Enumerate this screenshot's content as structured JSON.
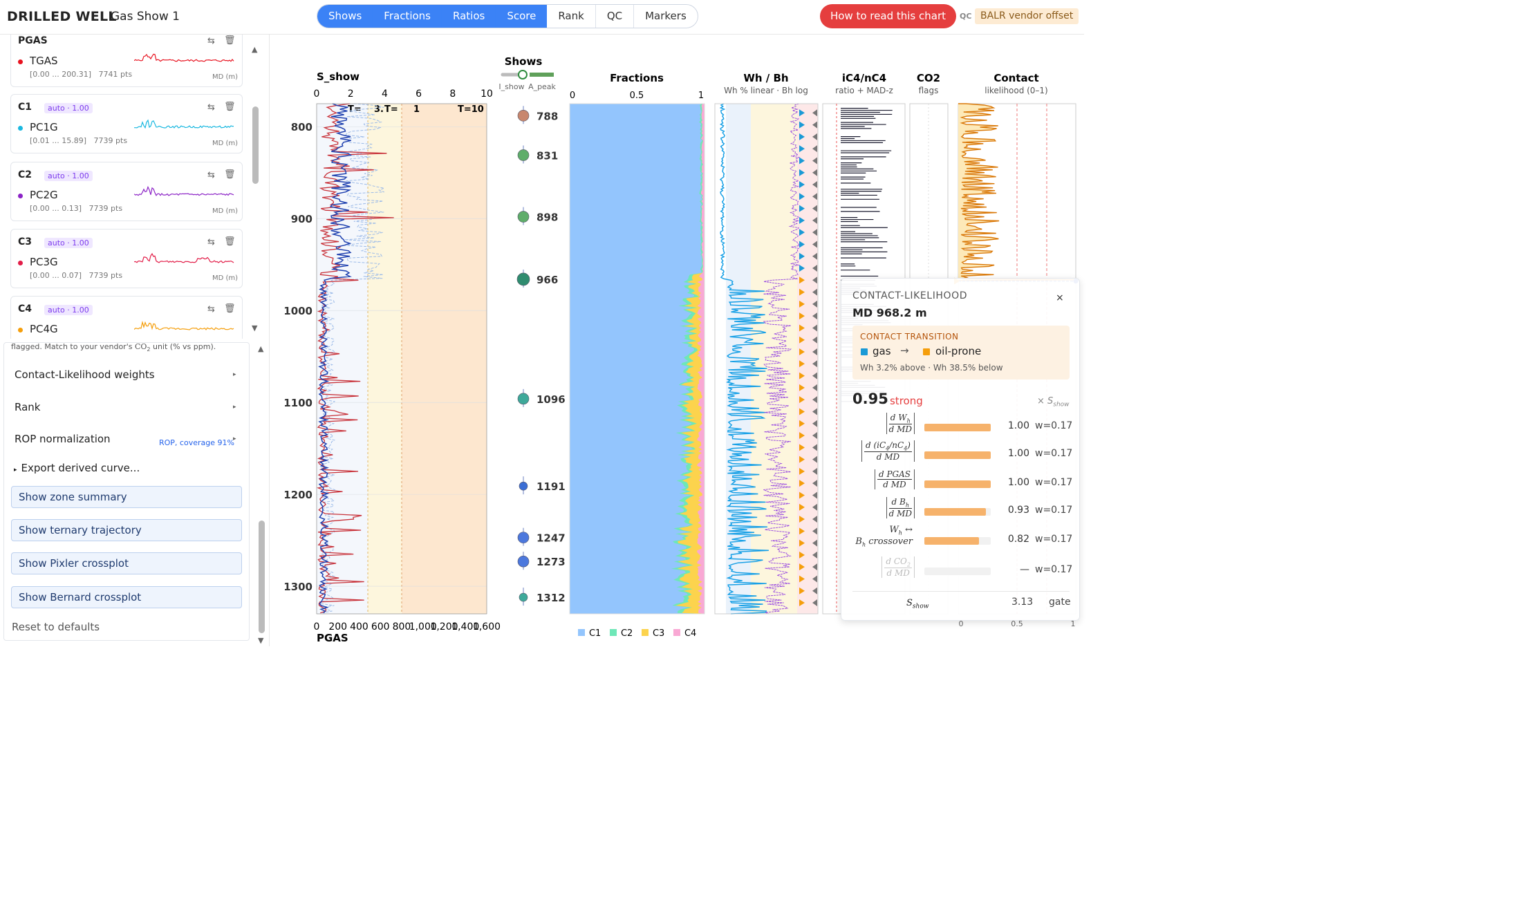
{
  "header": {
    "title": "DRILLED WELL",
    "subtitle": "Gas Show 1",
    "tabs": [
      "Shows",
      "Fractions",
      "Ratios",
      "Score",
      "Rank",
      "QC",
      "Markers"
    ],
    "how_button": "How to read this chart",
    "qc_label": "QC",
    "vendor_badge": "BALR vendor offset"
  },
  "curves": [
    {
      "header": "PGAS",
      "badge": "",
      "name": "TGAS",
      "range": "[0.00 ... 200.31]",
      "pts": "7741 pts",
      "color": "#e8121f",
      "axis": "MD (m)"
    },
    {
      "header": "C1",
      "badge": "auto · 1.00",
      "name": "PC1G",
      "range": "[0.01 ... 15.89]",
      "pts": "7739 pts",
      "color": "#1ab8e0",
      "axis": "MD (m)"
    },
    {
      "header": "C2",
      "badge": "auto · 1.00",
      "name": "PC2G",
      "range": "[0.00 ... 0.13]",
      "pts": "7739 pts",
      "color": "#8b22c6",
      "axis": "MD (m)"
    },
    {
      "header": "C3",
      "badge": "auto · 1.00",
      "name": "PC3G",
      "range": "[0.00 ... 0.07]",
      "pts": "7739 pts",
      "color": "#e21d48",
      "axis": "MD (m)"
    },
    {
      "header": "C4",
      "badge": "auto · 1.00",
      "name": "PC4G",
      "range": "",
      "pts": "",
      "color": "#f59e0b",
      "axis": "MD (m)"
    }
  ],
  "settings": {
    "note_pre": "flagged. Match to your vendor's ",
    "note_co2": "CO",
    "note_sub": "2",
    "note_post": " unit (% vs ppm).",
    "contact_weights": "Contact-Likelihood weights",
    "rank": "Rank",
    "rop": "ROP normalization",
    "rop_info": "ROP, coverage 91%",
    "export": "Export derived curve...",
    "buttons": [
      "Show zone summary",
      "Show ternary trajectory",
      "Show Pixler crossplot",
      "Show Bernard crossplot"
    ],
    "reset": "Reset to defaults"
  },
  "chart_data": {
    "type": "line",
    "depth_axis": {
      "ticks": [
        800,
        900,
        1000,
        1100,
        1200,
        1300
      ],
      "range": [
        775,
        1340
      ]
    },
    "tracks": {
      "sshow": {
        "title": "S_show",
        "top_ticks": [
          0,
          2,
          4,
          6,
          8,
          10
        ],
        "bottom_ticks": [
          "0",
          "200",
          "400",
          "600",
          "800",
          "1,000",
          "1,200",
          "1,400",
          "1,600"
        ],
        "bottom_label": "PGAS",
        "thresholds": [
          "T=",
          "3.",
          "T=",
          "1",
          "T=10"
        ]
      },
      "shows": {
        "title": "Shows",
        "legend_a": "I_show",
        "legend_b": "A_peak",
        "events": [
          {
            "md": 788,
            "label": "788",
            "color": "#c8876e"
          },
          {
            "md": 831,
            "label": "831",
            "color": "#5fad6a"
          },
          {
            "md": 898,
            "label": "898",
            "color": "#5fad6a"
          },
          {
            "md": 966,
            "label": "966",
            "color": "#2f8c6f"
          },
          {
            "md": 1096,
            "label": "1096",
            "color": "#3ea99a"
          },
          {
            "md": 1191,
            "label": "1191",
            "color": "#3b6ed4"
          },
          {
            "md": 1247,
            "label": "1247",
            "color": "#4c78dd"
          },
          {
            "md": 1273,
            "label": "1273",
            "color": "#4c78dd"
          },
          {
            "md": 1312,
            "label": "1312",
            "color": "#3ea99a"
          }
        ]
      },
      "fractions": {
        "title": "Fractions",
        "ticks": [
          "0",
          "0.5",
          "1"
        ],
        "legend": [
          "C1",
          "C2",
          "C3",
          "C4"
        ],
        "colors": [
          "#93c5fd",
          "#6ee7b7",
          "#fcd34d",
          "#f9a8d4"
        ]
      },
      "whbh": {
        "title": "Wh / Bh",
        "subtitle": "Wh % linear · Bh log"
      },
      "ic4": {
        "title": "iC4/nC4",
        "subtitle": "ratio + MAD-z"
      },
      "co2": {
        "title": "CO2",
        "subtitle": "flags"
      },
      "contact": {
        "title": "Contact",
        "subtitle": "likelihood (0–1)",
        "bottom_ticks": [
          "0",
          "0.5",
          "1"
        ]
      }
    }
  },
  "popup": {
    "title": "CONTACT-LIKELIHOOD",
    "md": "MD 968.2 m",
    "transition": "CONTACT TRANSITION",
    "from": "gas",
    "to": "oil-prone",
    "arrow": "→",
    "wh_note": "Wh 3.2% above · Wh 38.5% below",
    "score": "0.95",
    "strength": "strong",
    "times": "× S",
    "times_sub": "show",
    "terms": [
      {
        "num": "d W",
        "numsub": "h",
        "den": "d MD",
        "value": 1.0,
        "label": "1.00",
        "w": "w=0.17"
      },
      {
        "num": "d (iC",
        "numsub": "4",
        "num2": "/nC",
        "numsub2": "4",
        ")": ")",
        "den": "d MD",
        "value": 1.0,
        "label": "1.00",
        "w": "w=0.17"
      },
      {
        "num": "d PGAS",
        "den": "d MD",
        "value": 1.0,
        "label": "1.00",
        "w": "w=0.17"
      },
      {
        "num": "d B",
        "numsub": "h",
        "den": "d MD",
        "value": 0.93,
        "label": "0.93",
        "w": "w=0.17"
      },
      {
        "num": "W",
        "numsub": "h",
        "num_tail": " ↔",
        "den": "B",
        "densub": "h",
        "den_tail": " crossover",
        "value": 0.82,
        "label": "0.82",
        "w": "w=0.17"
      },
      {
        "num": "d CO",
        "numsub": "2",
        "den": "d MD",
        "value": 0,
        "label": "—",
        "w": "w=0.17"
      }
    ],
    "sshow_label": "S",
    "sshow_sub": "show",
    "sshow_value": "3.13",
    "gate": "gate",
    "close": "×"
  }
}
